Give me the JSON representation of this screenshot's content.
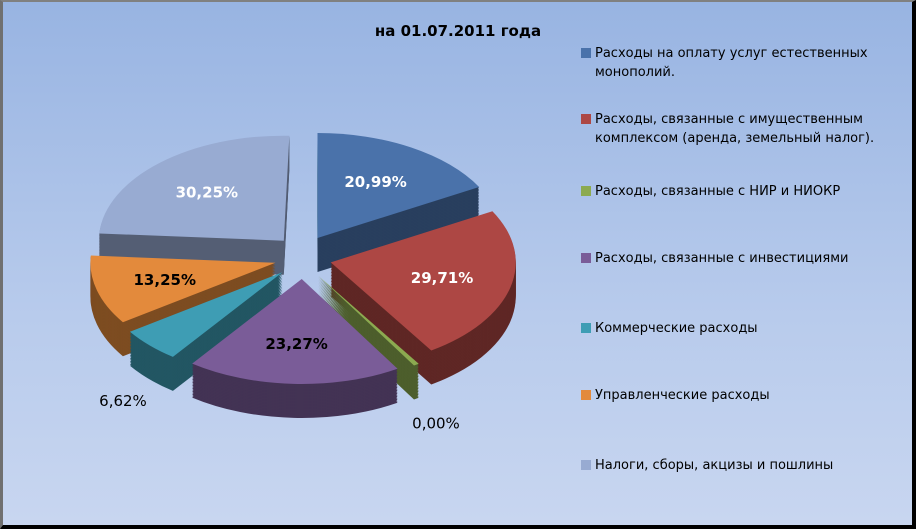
{
  "chart_data": {
    "type": "pie",
    "title": "на 01.07.2011 года",
    "legend_position": "right",
    "series": [
      {
        "name": "Расходы на оплату услуг естественных монополий.",
        "value": 20.99,
        "label": "20,99%",
        "color": "#4a72aa"
      },
      {
        "name": "Расходы, связанные с имущественным комплексом (аренда, земельный налог).",
        "value": 29.71,
        "label": "29,71%",
        "color": "#ad4744"
      },
      {
        "name": "Расходы, связанные с НИР и НИОКР",
        "value": 0.0,
        "label": "0,00%",
        "color": "#8caa50"
      },
      {
        "name": "Расходы, связанные с инвестициями",
        "value": 23.27,
        "label": "23,27%",
        "color": "#7a5c98"
      },
      {
        "name": "Коммерческие расходы",
        "value": 6.62,
        "label": "6,62%",
        "color": "#3e9db4"
      },
      {
        "name": "Управленческие расходы",
        "value": 13.25,
        "label": "13,25%",
        "color": "#e38a3c"
      },
      {
        "name": "Налоги, сборы, акцизы и пошлины",
        "value": 30.25,
        "label": "30,25%",
        "color": "#98abd2"
      }
    ]
  }
}
